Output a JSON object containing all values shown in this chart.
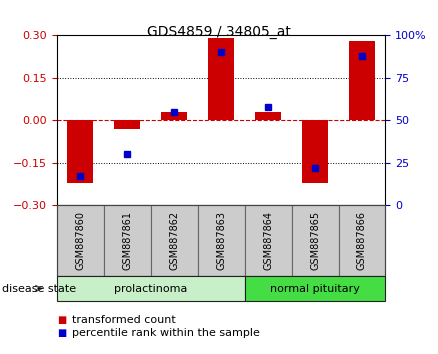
{
  "title": "GDS4859 / 34805_at",
  "samples": [
    "GSM887860",
    "GSM887861",
    "GSM887862",
    "GSM887863",
    "GSM887864",
    "GSM887865",
    "GSM887866"
  ],
  "transformed_count": [
    -0.22,
    -0.03,
    0.03,
    0.29,
    0.03,
    -0.22,
    0.28
  ],
  "percentile_rank": [
    17,
    30,
    55,
    90,
    58,
    22,
    88
  ],
  "bar_color": "#cc0000",
  "dot_color": "#0000cc",
  "ylim_left": [
    -0.3,
    0.3
  ],
  "ylim_right": [
    0,
    100
  ],
  "yticks_left": [
    -0.3,
    -0.15,
    0,
    0.15,
    0.3
  ],
  "yticks_right": [
    0,
    25,
    50,
    75,
    100
  ],
  "group_spans": [
    {
      "start": 0,
      "end": 3,
      "label": "prolactinoma",
      "facecolor": "#c8f0c8"
    },
    {
      "start": 4,
      "end": 6,
      "label": "normal pituitary",
      "facecolor": "#44dd44"
    }
  ],
  "disease_state_label": "disease state",
  "legend_items": [
    {
      "label": "transformed count",
      "color": "#cc0000"
    },
    {
      "label": "percentile rank within the sample",
      "color": "#0000cc"
    }
  ],
  "background_color": "#ffffff",
  "zero_line_color": "#cc0000",
  "sample_box_color": "#cccccc",
  "title_fontsize": 10,
  "axis_label_fontsize": 8,
  "sample_label_fontsize": 7,
  "legend_fontsize": 8
}
